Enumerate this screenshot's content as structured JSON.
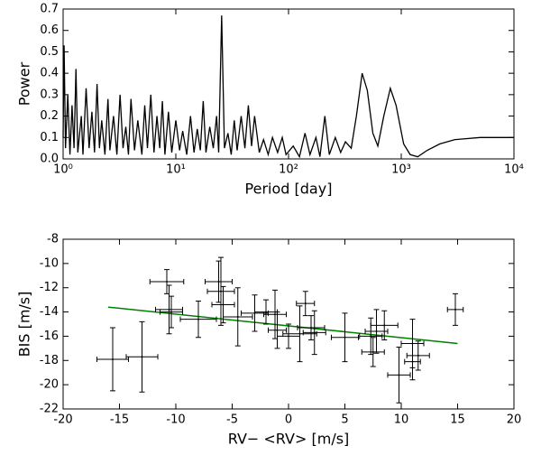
{
  "chart_data": [
    {
      "type": "line",
      "xlabel": "Period [day]",
      "ylabel": "Power",
      "xscale": "log",
      "color": "#000000",
      "xlim": [
        1,
        10000
      ],
      "xticks": [
        {
          "value": 1,
          "label": "10⁰"
        },
        {
          "value": 10,
          "label": "10¹"
        },
        {
          "value": 100,
          "label": "10²"
        },
        {
          "value": 1000,
          "label": "10³"
        },
        {
          "value": 10000,
          "label": "10⁴"
        }
      ],
      "ylim": [
        0,
        0.7
      ],
      "yticks": [
        {
          "value": 0,
          "label": "0.0"
        },
        0.1,
        0.2,
        0.3,
        0.4,
        0.5,
        0.6,
        0.7
      ],
      "x": [
        1.0,
        1.02,
        1.05,
        1.1,
        1.15,
        1.2,
        1.25,
        1.3,
        1.35,
        1.45,
        1.5,
        1.6,
        1.7,
        1.8,
        1.9,
        2.0,
        2.1,
        2.2,
        2.35,
        2.5,
        2.6,
        2.8,
        3.0,
        3.2,
        3.4,
        3.6,
        3.8,
        4.0,
        4.3,
        4.6,
        5.0,
        5.3,
        5.6,
        6.0,
        6.4,
        6.8,
        7.2,
        7.6,
        8.0,
        8.6,
        9.2,
        10,
        10.8,
        11.5,
        12.5,
        13.5,
        14.5,
        15.5,
        16.5,
        17.5,
        18.5,
        20,
        21.5,
        23,
        24,
        25.5,
        27,
        29,
        31,
        33,
        35,
        38,
        41,
        44,
        47,
        50,
        55,
        60,
        66,
        72,
        80,
        88,
        95,
        110,
        125,
        140,
        155,
        175,
        190,
        210,
        230,
        260,
        290,
        320,
        360,
        400,
        450,
        500,
        560,
        620,
        700,
        800,
        900,
        1050,
        1200,
        1400,
        1700,
        2200,
        3000,
        5000,
        10000
      ],
      "values": [
        0.1,
        0.53,
        0.05,
        0.3,
        0.02,
        0.25,
        0.05,
        0.42,
        0.03,
        0.2,
        0.02,
        0.33,
        0.05,
        0.22,
        0.03,
        0.35,
        0.05,
        0.18,
        0.02,
        0.28,
        0.04,
        0.2,
        0.02,
        0.3,
        0.05,
        0.15,
        0.02,
        0.28,
        0.04,
        0.18,
        0.02,
        0.25,
        0.05,
        0.3,
        0.03,
        0.2,
        0.05,
        0.27,
        0.02,
        0.22,
        0.03,
        0.18,
        0.04,
        0.13,
        0.02,
        0.2,
        0.03,
        0.14,
        0.04,
        0.27,
        0.03,
        0.15,
        0.05,
        0.2,
        0.03,
        0.67,
        0.05,
        0.12,
        0.02,
        0.18,
        0.04,
        0.2,
        0.05,
        0.25,
        0.06,
        0.2,
        0.03,
        0.09,
        0.02,
        0.1,
        0.03,
        0.1,
        0.02,
        0.06,
        0.01,
        0.12,
        0.02,
        0.1,
        0.01,
        0.2,
        0.02,
        0.1,
        0.03,
        0.08,
        0.05,
        0.2,
        0.4,
        0.32,
        0.12,
        0.06,
        0.2,
        0.33,
        0.25,
        0.07,
        0.02,
        0.01,
        0.04,
        0.07,
        0.09,
        0.1,
        0.1
      ]
    },
    {
      "type": "scatter",
      "xlabel": "RV− <RV> [m/s]",
      "ylabel": "BIS [m/s]",
      "color": "#000000",
      "xlim": [
        -20,
        20
      ],
      "xticks": [
        -20,
        -15,
        -10,
        -5,
        0,
        5,
        10,
        15,
        20
      ],
      "ylim": [
        -22,
        -8
      ],
      "yticks": [
        -22,
        -20,
        -18,
        -16,
        -14,
        -12,
        -10,
        -8
      ],
      "x": [
        -15.6,
        -13.0,
        -10.8,
        -10.6,
        -10.4,
        -8.0,
        -6.2,
        -6.0,
        -5.8,
        -4.5,
        -3.0,
        -2.0,
        -1.2,
        -1.0,
        0.0,
        1.0,
        1.5,
        2.0,
        2.3,
        5.0,
        7.3,
        7.5,
        7.8,
        8.5,
        9.8,
        11.0,
        11.0,
        11.5,
        14.8
      ],
      "values": [
        -17.9,
        -17.7,
        -11.5,
        -13.8,
        -14.0,
        -14.6,
        -11.5,
        -12.3,
        -13.4,
        -14.4,
        -14.1,
        -14.0,
        -14.2,
        -15.5,
        -16.0,
        -15.8,
        -13.3,
        -15.3,
        -15.7,
        -16.1,
        -16.0,
        -17.3,
        -15.6,
        -15.1,
        -19.2,
        -16.6,
        -18.1,
        -17.6,
        -13.8
      ],
      "xerr": [
        1.4,
        1.4,
        1.5,
        1.2,
        1.0,
        1.6,
        1.2,
        1.2,
        1.0,
        1.3,
        1.2,
        1.0,
        1.0,
        0.8,
        1.0,
        1.5,
        0.8,
        1.2,
        1.0,
        1.2,
        1.0,
        1.0,
        1.0,
        1.2,
        1.0,
        1.0,
        0.7,
        1.0,
        0.7
      ],
      "yerr": [
        2.6,
        2.9,
        1.0,
        2.0,
        1.3,
        1.5,
        1.7,
        2.8,
        1.5,
        2.4,
        1.5,
        1.0,
        2.0,
        1.5,
        1.0,
        2.3,
        1.0,
        1.0,
        1.8,
        2.0,
        1.5,
        1.2,
        1.8,
        1.2,
        2.3,
        2.0,
        1.5,
        1.2,
        1.3
      ],
      "fit": {
        "x": [
          -16,
          15
        ],
        "values": [
          -13.6,
          -16.6
        ],
        "color": "#008000"
      }
    }
  ]
}
